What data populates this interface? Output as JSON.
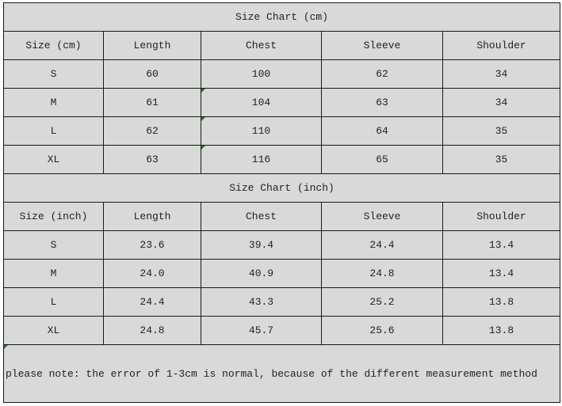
{
  "cm": {
    "title": "Size Chart (cm)",
    "headers": [
      "Size (cm)",
      "Length",
      "Chest",
      "Sleeve",
      "Shoulder"
    ],
    "rows": [
      [
        "S",
        "60",
        "100",
        "62",
        "34"
      ],
      [
        "M",
        "61",
        "104",
        "63",
        "34"
      ],
      [
        "L",
        "62",
        "110",
        "64",
        "35"
      ],
      [
        "XL",
        "63",
        "116",
        "65",
        "35"
      ]
    ]
  },
  "inch": {
    "title": "Size Chart (inch)",
    "headers": [
      "Size (inch)",
      "Length",
      "Chest",
      "Sleeve",
      "Shoulder"
    ],
    "rows": [
      [
        "S",
        "23.6",
        "39.4",
        "24.4",
        "13.4"
      ],
      [
        "M",
        "24.0",
        "40.9",
        "24.8",
        "13.4"
      ],
      [
        "L",
        "24.4",
        "43.3",
        "25.2",
        "13.8"
      ],
      [
        "XL",
        "24.8",
        "45.7",
        "25.6",
        "13.8"
      ]
    ]
  },
  "note": "please note: the error of 1-3cm is normal, because of the different measurement method"
}
